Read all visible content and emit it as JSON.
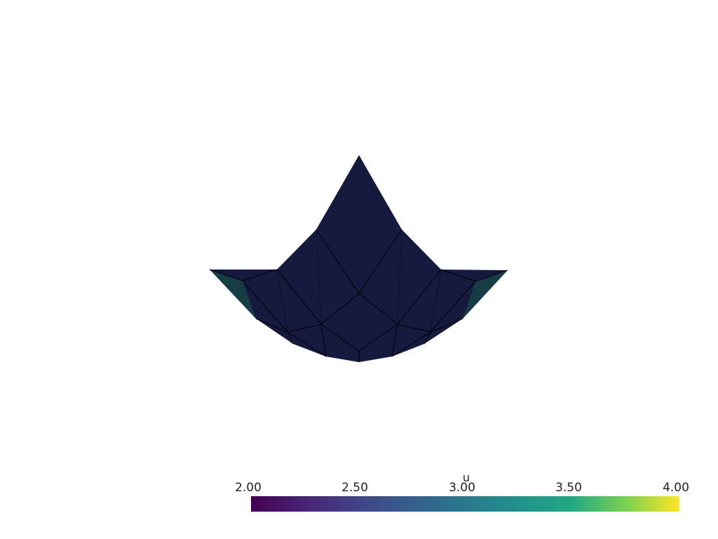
{
  "scene": {
    "background": "#ffffff",
    "surface_colormap": "viridis",
    "mesh_edges": "black",
    "shape": "downward-curving surface with central peak"
  },
  "colorbar": {
    "title": "u",
    "ticks": [
      "2.00",
      "2.50",
      "3.00",
      "3.50",
      "4.00"
    ],
    "range": [
      2.0,
      4.0
    ],
    "colormap": "viridis",
    "colors": [
      "#440154",
      "#3b528b",
      "#21918c",
      "#5ec962",
      "#fde725"
    ]
  }
}
